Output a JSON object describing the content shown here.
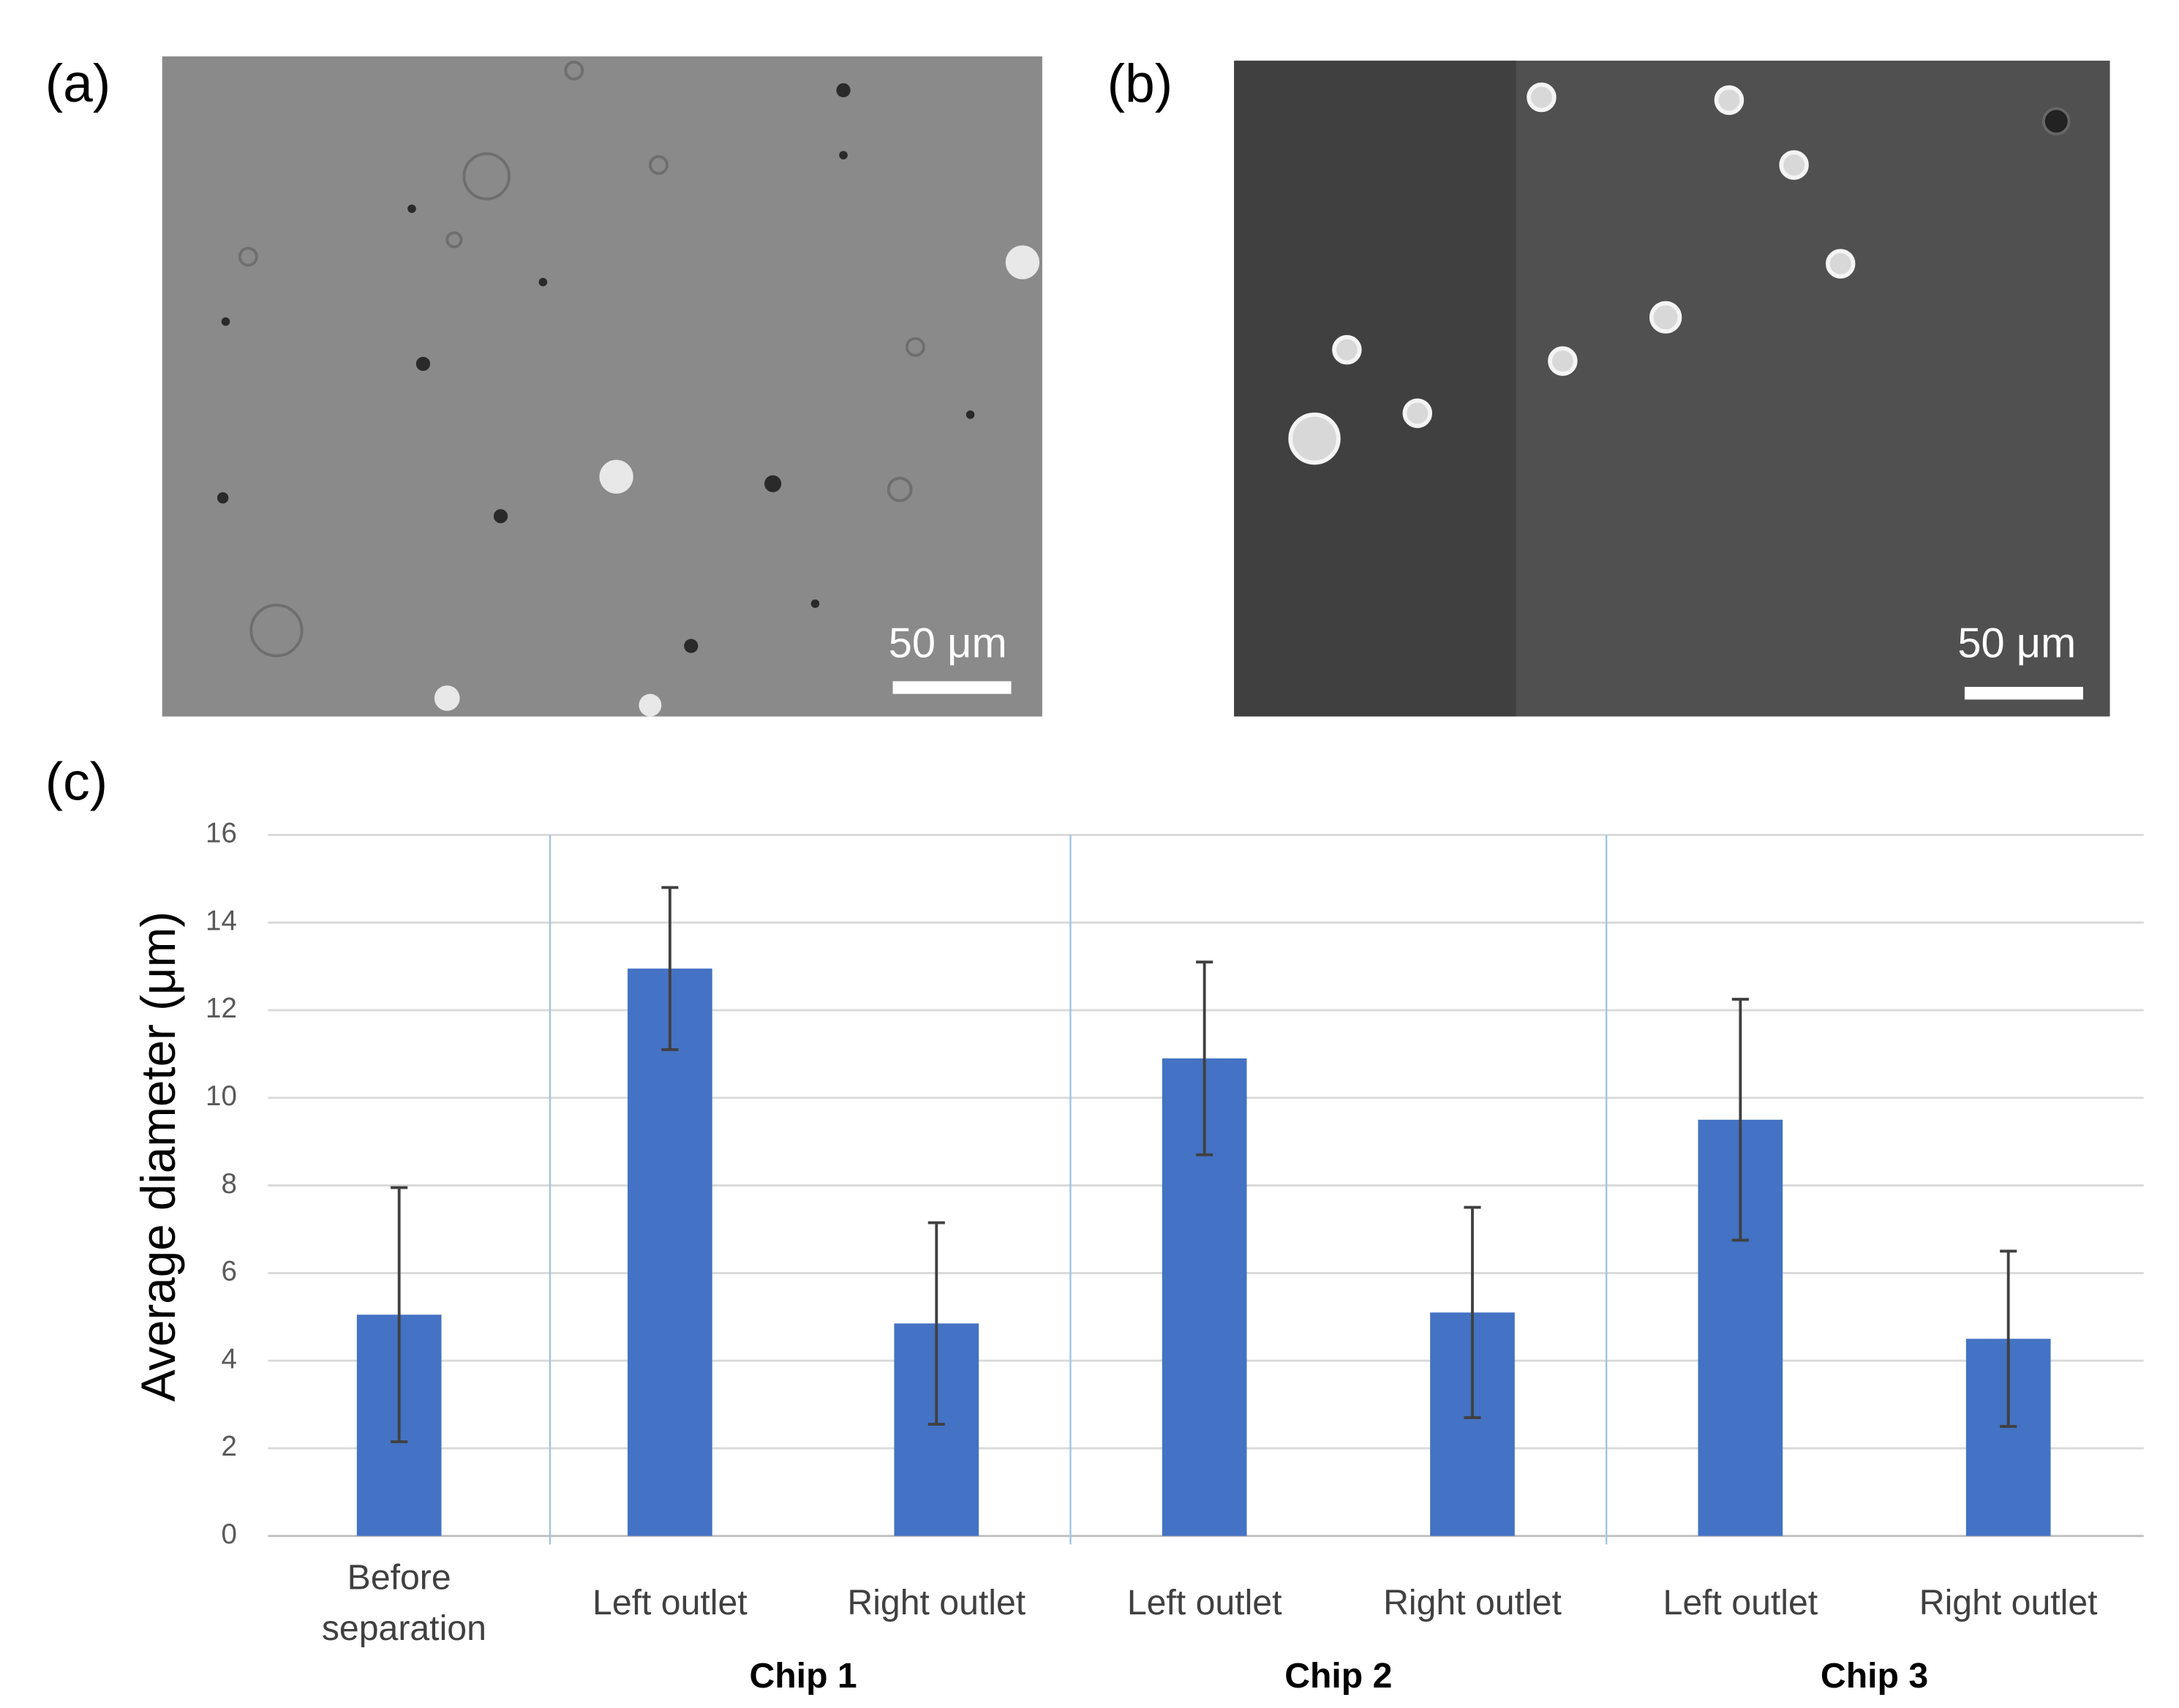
{
  "panels": [
    {
      "label": "(a)",
      "scale_bar": "50 μm"
    },
    {
      "label": "(b)",
      "scale_bar": "50 μm"
    }
  ],
  "chart_data": {
    "type": "bar",
    "panel_label": "(c)",
    "y_label": "Average diameter (μm)",
    "categories": [
      "Before separation",
      "Left outlet",
      "Right outlet",
      "Left outlet",
      "Right outlet",
      "Left outlet",
      "Right outlet"
    ],
    "groups": [
      {
        "name": "Chip 1",
        "categories": [
          1,
          2
        ]
      },
      {
        "name": "Chip 2",
        "categories": [
          3,
          4
        ]
      },
      {
        "name": "Chip 3",
        "categories": [
          5,
          6
        ]
      }
    ],
    "values": [
      5.05,
      12.95,
      4.85,
      10.9,
      5.1,
      9.5,
      4.5
    ],
    "errors": [
      2.9,
      1.85,
      2.3,
      2.2,
      2.4,
      2.75,
      2.0
    ],
    "color": "#4472c4",
    "ylim": [
      0,
      16
    ],
    "yticks": [
      0,
      2,
      4,
      6,
      8,
      10,
      12,
      14,
      16
    ],
    "grid": true
  }
}
